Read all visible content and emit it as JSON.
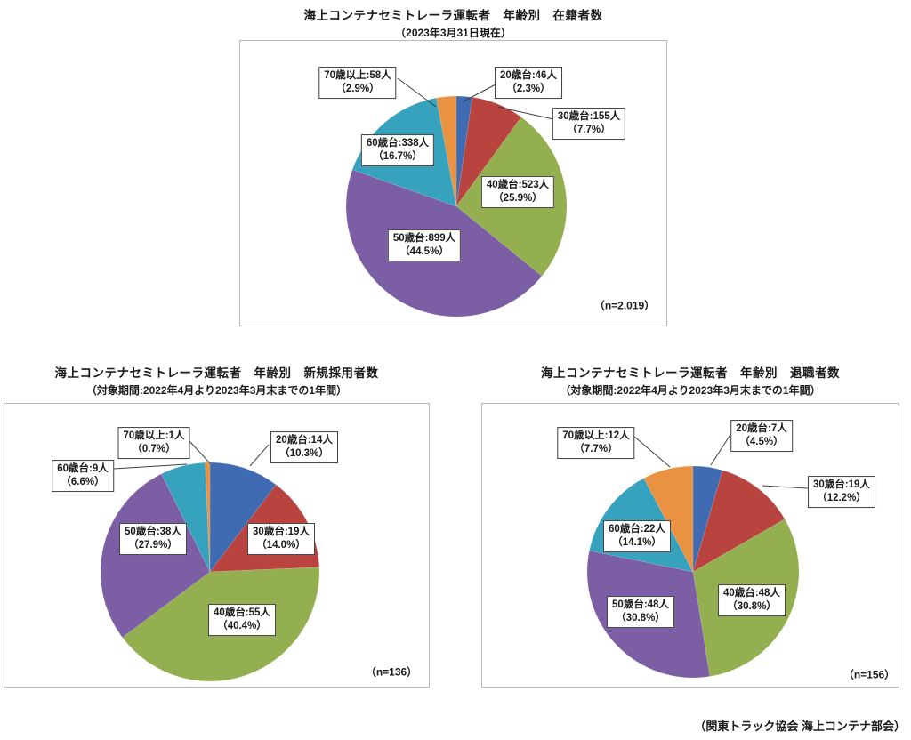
{
  "footer": "（関東トラック協会 海上コンテナ部会）",
  "palette": {
    "blue": "#3E6BB2",
    "red": "#B8433F",
    "green": "#93AF4F",
    "purple": "#7B5EA3",
    "teal": "#36A2BD",
    "orange": "#E99242"
  },
  "chart_data": [
    {
      "type": "pie",
      "title": "海上コンテナセミトレーラ運転者　年齢別　在籍者数",
      "subtitle": "（2023年3月31日現在）",
      "n_label": "（n=2,019）",
      "total": 2019,
      "start_angle": "12-oclock",
      "direction": "clockwise",
      "legend_position": "callout-boxes",
      "categories": [
        "20歳台",
        "30歳台",
        "40歳台",
        "50歳台",
        "60歳台",
        "70歳以上"
      ],
      "values": [
        46,
        155,
        523,
        899,
        338,
        58
      ],
      "percents": [
        2.3,
        7.7,
        25.9,
        44.5,
        16.7,
        2.9
      ],
      "color_keys": [
        "blue",
        "red",
        "green",
        "purple",
        "teal",
        "orange"
      ],
      "labels": [
        {
          "line1": "20歳台:46人",
          "line2": "（2.3%）"
        },
        {
          "line1": "30歳台:155人",
          "line2": "（7.7%）"
        },
        {
          "line1": "40歳台:523人",
          "line2": "（25.9%）"
        },
        {
          "line1": "50歳台:899人",
          "line2": "（44.5%）"
        },
        {
          "line1": "60歳台:338人",
          "line2": "（16.7%）"
        },
        {
          "line1": "70歳以上:58人",
          "line2": "（2.9%）"
        }
      ]
    },
    {
      "type": "pie",
      "title": "海上コンテナセミトレーラ運転者　年齢別　新規採用者数",
      "subtitle": "（対象期間:2022年4月より2023年3月末までの1年間）",
      "n_label": "（n=136）",
      "total": 136,
      "start_angle": "12-oclock",
      "direction": "clockwise",
      "legend_position": "callout-boxes",
      "categories": [
        "20歳台",
        "30歳台",
        "40歳台",
        "50歳台",
        "60歳台",
        "70歳以上"
      ],
      "values": [
        14,
        19,
        55,
        38,
        9,
        1
      ],
      "percents": [
        10.3,
        14.0,
        40.4,
        27.9,
        6.6,
        0.7
      ],
      "color_keys": [
        "blue",
        "red",
        "green",
        "purple",
        "teal",
        "orange"
      ],
      "labels": [
        {
          "line1": "20歳台:14人",
          "line2": "（10.3%）"
        },
        {
          "line1": "30歳台:19人",
          "line2": "（14.0%）"
        },
        {
          "line1": "40歳台:55人",
          "line2": "（40.4%）"
        },
        {
          "line1": "50歳台:38人",
          "line2": "（27.9%）"
        },
        {
          "line1": "60歳台:9人",
          "line2": "（6.6%）"
        },
        {
          "line1": "70歳以上:1人",
          "line2": "（0.7%）"
        }
      ]
    },
    {
      "type": "pie",
      "title": "海上コンテナセミトレーラ運転者　年齢別　退職者数",
      "subtitle": "（対象期間:2022年4月より2023年3月末までの1年間）",
      "n_label": "（n=156）",
      "total": 156,
      "start_angle": "12-oclock",
      "direction": "clockwise",
      "legend_position": "callout-boxes",
      "categories": [
        "20歳台",
        "30歳台",
        "40歳台",
        "50歳台",
        "60歳台",
        "70歳以上"
      ],
      "values": [
        7,
        19,
        48,
        48,
        22,
        12
      ],
      "percents": [
        4.5,
        12.2,
        30.8,
        30.8,
        14.1,
        7.7
      ],
      "color_keys": [
        "blue",
        "red",
        "green",
        "purple",
        "teal",
        "orange"
      ],
      "labels": [
        {
          "line1": "20歳台:7人",
          "line2": "（4.5%）"
        },
        {
          "line1": "30歳台:19人",
          "line2": "（12.2%）"
        },
        {
          "line1": "40歳台:48人",
          "line2": "（30.8%）"
        },
        {
          "line1": "50歳台:48人",
          "line2": "（30.8%）"
        },
        {
          "line1": "60歳台:22人",
          "line2": "（14.1%）"
        },
        {
          "line1": "70歳以上:12人",
          "line2": "（7.7%）"
        }
      ]
    }
  ]
}
